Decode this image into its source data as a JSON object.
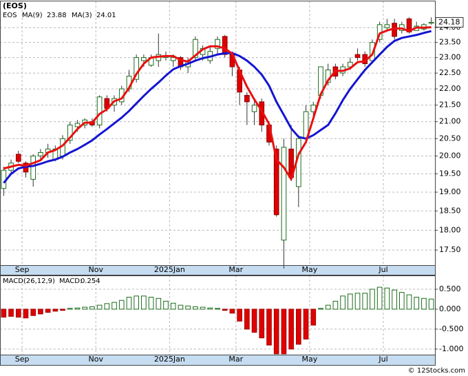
{
  "chart_data": [
    {
      "type": "candlestick",
      "title": "(EOS)",
      "ticker": "EOS",
      "log_scale": true,
      "grid": true,
      "up_color": "#ffffff",
      "up_edge": "#1a6b1a",
      "down_color": "#e00000",
      "categories": [
        null,
        null,
        null,
        "Sep",
        null,
        null,
        null,
        null,
        null,
        null,
        null,
        null,
        null,
        "Nov",
        null,
        null,
        null,
        null,
        null,
        null,
        null,
        null,
        null,
        "2025Jan",
        null,
        null,
        null,
        null,
        null,
        null,
        null,
        null,
        "Mar",
        null,
        null,
        null,
        null,
        null,
        null,
        null,
        null,
        null,
        "May",
        null,
        null,
        null,
        null,
        null,
        null,
        null,
        null,
        null,
        "Jul",
        null,
        null,
        null,
        null,
        null,
        null
      ],
      "open": [
        19.1,
        19.6,
        20.05,
        19.8,
        19.35,
        20.0,
        20.1,
        19.9,
        20.0,
        20.45,
        20.85,
        20.9,
        21.0,
        20.9,
        21.7,
        21.5,
        21.6,
        22.0,
        22.3,
        22.9,
        22.75,
        22.9,
        23.0,
        22.9,
        23.0,
        22.7,
        23.0,
        23.1,
        22.9,
        23.3,
        23.7,
        23.1,
        22.6,
        21.8,
        21.3,
        21.6,
        20.9,
        20.2,
        17.75,
        20.2,
        19.15,
        20.5,
        21.3,
        21.8,
        22.2,
        22.7,
        22.5,
        22.7,
        23.1,
        23.1,
        22.9,
        23.6,
        24.0,
        24.15,
        23.9,
        24.3,
        23.9,
        23.95,
        24.15
      ],
      "high": [
        19.7,
        19.9,
        20.15,
        19.85,
        20.05,
        20.2,
        20.35,
        20.3,
        20.6,
        21.0,
        21.05,
        21.1,
        21.1,
        21.8,
        21.8,
        21.8,
        22.1,
        22.6,
        23.1,
        23.1,
        23.1,
        23.8,
        23.2,
        23.1,
        23.05,
        23.0,
        23.7,
        23.4,
        23.4,
        23.7,
        23.75,
        23.2,
        22.7,
        21.9,
        21.7,
        21.7,
        21.0,
        20.3,
        20.5,
        20.9,
        20.6,
        21.5,
        21.6,
        22.7,
        22.8,
        22.8,
        22.8,
        23.0,
        23.3,
        23.2,
        23.6,
        24.2,
        24.3,
        24.3,
        24.2,
        24.35,
        24.2,
        24.15,
        24.35
      ],
      "low": [
        18.9,
        19.5,
        19.8,
        19.4,
        19.15,
        19.9,
        19.95,
        19.85,
        19.9,
        20.35,
        20.7,
        20.8,
        20.85,
        20.8,
        21.3,
        21.3,
        21.5,
        21.9,
        22.2,
        22.7,
        22.7,
        22.7,
        22.9,
        22.7,
        22.6,
        22.5,
        22.9,
        22.9,
        22.8,
        23.1,
        23.0,
        22.4,
        21.5,
        20.9,
        20.9,
        20.7,
        20.3,
        18.35,
        17.05,
        19.3,
        18.6,
        20.4,
        21.1,
        21.7,
        22.1,
        22.3,
        22.4,
        22.6,
        22.9,
        22.7,
        22.8,
        23.5,
        23.9,
        23.6,
        23.8,
        23.8,
        23.9,
        23.9,
        24.1
      ],
      "close": [
        19.6,
        19.8,
        19.85,
        19.55,
        20.0,
        20.1,
        20.2,
        20.2,
        20.5,
        20.9,
        20.95,
        21.05,
        20.9,
        21.75,
        21.4,
        21.7,
        22.0,
        22.4,
        23.0,
        23.0,
        23.0,
        23.1,
        23.05,
        23.0,
        22.7,
        22.9,
        23.6,
        23.3,
        23.2,
        23.6,
        23.1,
        22.7,
        21.9,
        21.6,
        21.5,
        20.9,
        20.4,
        18.4,
        20.25,
        19.4,
        20.5,
        21.3,
        21.5,
        22.7,
        22.6,
        22.4,
        22.7,
        22.85,
        23.0,
        22.8,
        23.5,
        24.1,
        24.1,
        23.7,
        24.1,
        23.85,
        24.05,
        24.1,
        24.18
      ],
      "series": [
        {
          "name": "MA(9)",
          "color": "#1414d2",
          "values": [
            19.25,
            19.5,
            19.65,
            19.7,
            19.72,
            19.78,
            19.85,
            19.9,
            19.98,
            20.1,
            20.2,
            20.32,
            20.45,
            20.62,
            20.78,
            20.95,
            21.12,
            21.32,
            21.55,
            21.78,
            22.0,
            22.2,
            22.42,
            22.62,
            22.72,
            22.8,
            22.9,
            22.98,
            23.03,
            23.1,
            23.14,
            23.15,
            23.05,
            22.9,
            22.7,
            22.45,
            22.1,
            21.6,
            21.2,
            20.8,
            20.55,
            20.5,
            20.6,
            20.75,
            20.9,
            21.25,
            21.65,
            22.0,
            22.3,
            22.6,
            22.85,
            23.1,
            23.35,
            23.55,
            23.65,
            23.7,
            23.75,
            23.82,
            23.88
          ]
        },
        {
          "name": "MA(3)",
          "color": "#e81010",
          "values": [
            19.65,
            19.7,
            19.75,
            19.73,
            19.8,
            19.88,
            20.1,
            20.17,
            20.3,
            20.53,
            20.78,
            20.97,
            20.97,
            21.23,
            21.37,
            21.62,
            21.7,
            22.03,
            22.47,
            22.8,
            23.0,
            23.03,
            23.05,
            23.05,
            22.92,
            22.87,
            23.07,
            23.27,
            23.37,
            23.37,
            23.3,
            23.13,
            22.57,
            22.07,
            21.67,
            21.33,
            20.93,
            19.9,
            19.68,
            19.35,
            20.05,
            20.4,
            21.1,
            21.83,
            22.27,
            22.57,
            22.57,
            22.65,
            22.85,
            22.88,
            23.1,
            23.8,
            23.9,
            23.97,
            23.97,
            23.88,
            24.0,
            24.0,
            24.01
          ]
        }
      ],
      "ylim": [
        17.13,
        24.91
      ],
      "yticks": [
        {
          "value": 17.5,
          "label": "17.50"
        },
        {
          "value": 18,
          "label": "18.00"
        },
        {
          "value": 18.5,
          "label": "18.50"
        },
        {
          "value": 19,
          "label": "19.00"
        },
        {
          "value": 19.5,
          "label": "19.50"
        },
        {
          "value": 20,
          "label": "20.00"
        },
        {
          "value": 20.5,
          "label": "20.50"
        },
        {
          "value": 21,
          "label": "21.00"
        },
        {
          "value": 21.5,
          "label": "21.50"
        },
        {
          "value": 22,
          "label": "22.00"
        },
        {
          "value": 22.5,
          "label": "22.50"
        },
        {
          "value": 23,
          "label": "23.00"
        },
        {
          "value": 23.5,
          "label": "23.50"
        },
        {
          "value": 24,
          "label": "24.00"
        }
      ]
    },
    {
      "type": "bar",
      "title": "MACD(26,12,9)",
      "legend_label": "MACD:",
      "grid": true,
      "up_color": "#ffffff",
      "up_edge": "#1a6b1a",
      "down_color": "#e00000",
      "values": [
        -0.2,
        -0.18,
        -0.2,
        -0.22,
        -0.16,
        -0.12,
        -0.08,
        -0.05,
        -0.03,
        0.02,
        0.03,
        0.05,
        0.06,
        0.1,
        0.14,
        0.17,
        0.22,
        0.3,
        0.33,
        0.33,
        0.3,
        0.27,
        0.2,
        0.15,
        0.1,
        0.08,
        0.06,
        0.05,
        0.03,
        0.02,
        -0.03,
        -0.1,
        -0.3,
        -0.5,
        -0.58,
        -0.72,
        -0.9,
        -1.12,
        -1.12,
        -1.0,
        -0.88,
        -0.75,
        -0.4,
        0.02,
        0.1,
        0.2,
        0.33,
        0.38,
        0.4,
        0.4,
        0.5,
        0.55,
        0.53,
        0.48,
        0.42,
        0.36,
        0.3,
        0.27,
        0.254
      ],
      "ylim": [
        -1.14,
        0.845
      ],
      "yticks": [
        {
          "value": -1,
          "label": "-1.000"
        },
        {
          "value": -0.5,
          "label": "-0.500"
        },
        {
          "value": 0,
          "label": "0.000"
        },
        {
          "value": 0.5,
          "label": "0.500"
        }
      ]
    }
  ],
  "credit": "© 12Stocks.com"
}
